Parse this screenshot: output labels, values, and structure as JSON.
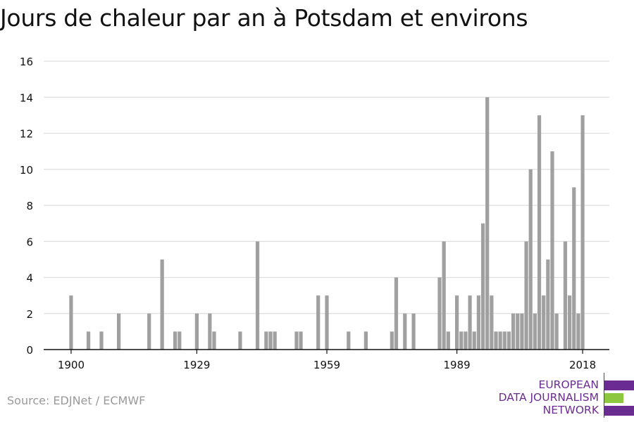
{
  "header": {
    "title": "Jours de chaleur par an à Potsdam et environs"
  },
  "footer": {
    "source": "Source: EDJNet / ECMWF"
  },
  "logo": {
    "lines": [
      "EUROPEAN",
      "DATA JOURNALISM",
      "NETWORK"
    ],
    "colors": {
      "purple": "#6b2c91",
      "green": "#8dc63f"
    }
  },
  "colors": {
    "bar": "#a0a0a0",
    "grid": "#dddddd",
    "axis": "#111111",
    "text": "#111111"
  },
  "chart_data": {
    "type": "bar",
    "title": "Jours de chaleur par an à Potsdam et environs",
    "xlabel": "",
    "ylabel": "",
    "xlim": [
      1894,
      2024
    ],
    "ylim": [
      0,
      16
    ],
    "yticks": [
      0,
      2,
      4,
      6,
      8,
      10,
      12,
      14,
      16
    ],
    "xticks": [
      1900,
      1929,
      1959,
      1989,
      2018
    ],
    "grid": true,
    "x": [
      1900,
      1904,
      1907,
      1911,
      1918,
      1921,
      1924,
      1925,
      1929,
      1932,
      1933,
      1939,
      1943,
      1945,
      1946,
      1947,
      1952,
      1953,
      1957,
      1959,
      1964,
      1968,
      1974,
      1975,
      1977,
      1979,
      1985,
      1986,
      1987,
      1989,
      1990,
      1991,
      1992,
      1993,
      1994,
      1995,
      1996,
      1997,
      1998,
      1999,
      2000,
      2001,
      2002,
      2003,
      2004,
      2005,
      2006,
      2007,
      2008,
      2009,
      2010,
      2011,
      2012,
      2014,
      2015,
      2016,
      2017,
      2018
    ],
    "values": [
      3,
      1,
      1,
      2,
      2,
      5,
      1,
      1,
      2,
      2,
      1,
      1,
      6,
      1,
      1,
      1,
      1,
      1,
      3,
      3,
      1,
      1,
      1,
      4,
      2,
      2,
      4,
      6,
      1,
      3,
      1,
      1,
      3,
      1,
      3,
      7,
      14,
      3,
      1,
      1,
      1,
      1,
      2,
      2,
      2,
      6,
      10,
      2,
      13,
      3,
      5,
      11,
      2,
      6,
      3,
      9,
      2,
      13
    ]
  }
}
